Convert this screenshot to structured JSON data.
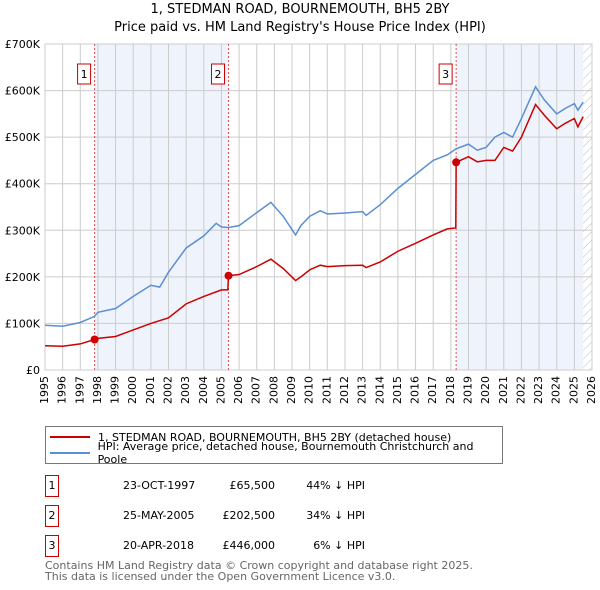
{
  "chart_data": {
    "type": "line",
    "title": "1, STEDMAN ROAD, BOURNEMOUTH, BH5 2BY",
    "subtitle": "Price paid vs. HM Land Registry's House Price Index (HPI)",
    "xlim": [
      1995,
      2026
    ],
    "ylim": [
      0,
      700000
    ],
    "x_ticks": [
      "1995",
      "1996",
      "1997",
      "1998",
      "1999",
      "2000",
      "2001",
      "2002",
      "2003",
      "2004",
      "2005",
      "2006",
      "2007",
      "2008",
      "2009",
      "2010",
      "2011",
      "2012",
      "2013",
      "2014",
      "2015",
      "2016",
      "2017",
      "2018",
      "2019",
      "2020",
      "2021",
      "2022",
      "2023",
      "2024",
      "2025",
      "2026"
    ],
    "y_ticks": [
      {
        "v": 0,
        "label": "£0"
      },
      {
        "v": 100000,
        "label": "£100K"
      },
      {
        "v": 200000,
        "label": "£200K"
      },
      {
        "v": 300000,
        "label": "£300K"
      },
      {
        "v": 400000,
        "label": "£400K"
      },
      {
        "v": 500000,
        "label": "£500K"
      },
      {
        "v": 600000,
        "label": "£600K"
      },
      {
        "v": 700000,
        "label": "£700K"
      }
    ],
    "grid": true,
    "series": [
      {
        "name": "1, STEDMAN ROAD, BOURNEMOUTH, BH5 2BY (detached house)",
        "color": "#cc0000",
        "x": [
          1995,
          1996,
          1997,
          1997.81,
          1998,
          1999,
          2000,
          2001,
          2002,
          2003,
          2004,
          2005,
          2005.36,
          2005.4,
          2006,
          2007,
          2007.8,
          2008.5,
          2009.2,
          2009.5,
          2010,
          2010.6,
          2011,
          2012,
          2013,
          2013.2,
          2014,
          2015,
          2016,
          2017,
          2017.8,
          2018.28,
          2018.3,
          2019,
          2019.5,
          2020,
          2020.5,
          2021,
          2021.5,
          2022,
          2022.8,
          2023.3,
          2024,
          2024.5,
          2025,
          2025.2,
          2025.5
        ],
        "y": [
          52000,
          51000,
          56000,
          65500,
          68000,
          72000,
          86000,
          100000,
          112000,
          142000,
          158000,
          172000,
          172000,
          202500,
          205000,
          222000,
          238000,
          218000,
          192000,
          200000,
          215000,
          225000,
          222000,
          224000,
          225000,
          220000,
          232000,
          255000,
          272000,
          290000,
          303000,
          305000,
          446000,
          458000,
          447000,
          450000,
          450000,
          478000,
          470000,
          500000,
          570000,
          547000,
          518000,
          530000,
          540000,
          522000,
          544000
        ]
      },
      {
        "name": "HPI: Average price, detached house, Bournemouth Christchurch and Poole",
        "color": "#5b8fd4",
        "x": [
          1995,
          1996,
          1997,
          1997.8,
          1998,
          1999,
          2000,
          2001,
          2001.5,
          2002,
          2003,
          2004,
          2004.7,
          2005,
          2005.4,
          2006,
          2007,
          2007.8,
          2008.5,
          2009.2,
          2009.5,
          2010,
          2010.6,
          2011,
          2012,
          2013,
          2013.2,
          2014,
          2015,
          2016,
          2017,
          2017.8,
          2018.3,
          2019,
          2019.5,
          2020,
          2020.5,
          2021,
          2021.5,
          2022,
          2022.8,
          2023.3,
          2024,
          2024.5,
          2025,
          2025.2,
          2025.5
        ],
        "y": [
          96000,
          94000,
          102000,
          115000,
          124000,
          132000,
          158000,
          182000,
          178000,
          210000,
          262000,
          288000,
          315000,
          307000,
          306000,
          310000,
          338000,
          360000,
          330000,
          290000,
          310000,
          330000,
          342000,
          335000,
          337000,
          340000,
          332000,
          355000,
          390000,
          420000,
          450000,
          462000,
          475000,
          485000,
          472000,
          478000,
          500000,
          510000,
          500000,
          540000,
          608000,
          580000,
          550000,
          562000,
          572000,
          558000,
          575000
        ]
      }
    ],
    "sales": [
      {
        "label": "1",
        "x": 1997.81,
        "y": 65500,
        "date": "23-OCT-1997",
        "price": "£65,500",
        "hpi": "44% ↓ HPI"
      },
      {
        "label": "2",
        "x": 2005.4,
        "y": 202500,
        "date": "25-MAY-2005",
        "price": "£202,500",
        "hpi": "34% ↓ HPI"
      },
      {
        "label": "3",
        "x": 2018.3,
        "y": 446000,
        "date": "20-APR-2018",
        "price": "£446,000",
        "hpi": "6% ↓ HPI"
      }
    ],
    "shaded_ranges": [
      [
        1997.81,
        2005.4
      ],
      [
        2018.3,
        2025.5
      ]
    ],
    "hatched_from": 2025.5,
    "legend_placement": "below"
  },
  "footer": [
    "Contains HM Land Registry data © Crown copyright and database right 2025.",
    "This data is licensed under the Open Government Licence v3.0."
  ]
}
